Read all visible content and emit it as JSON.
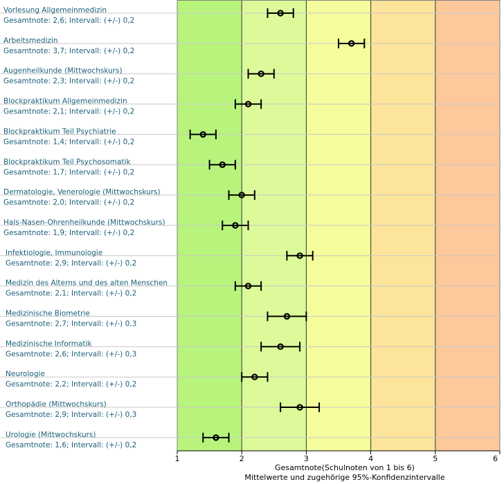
{
  "chart_data": {
    "type": "scatter",
    "subtype": "error-bar",
    "xlabel": "Gesamtnote(Schulnoten von 1 bis 6)",
    "xlabel_sub": "Mittelwerte und zugehörige 95%-Konfidenzintervalle",
    "xlim": [
      1,
      6
    ],
    "x_ticks": [
      "1",
      "2",
      "3",
      "4",
      "5",
      "6"
    ],
    "grid": "horizontal",
    "bands": [
      {
        "from": 1,
        "to": 2,
        "color": "#b8f47c"
      },
      {
        "from": 2,
        "to": 3,
        "color": "#dcfa9a"
      },
      {
        "from": 3,
        "to": 4,
        "color": "#f4fc9c"
      },
      {
        "from": 4,
        "to": 5,
        "color": "#fce49a"
      },
      {
        "from": 5,
        "to": 6,
        "color": "#fcc89c"
      }
    ],
    "items": [
      {
        "name": "Vorlesung Allgemeinmedizin",
        "stat": "Gesamtnote: 2,6;  Intervall: (+/-) 0,2",
        "mean": 2.6,
        "ci": 0.2
      },
      {
        "name": "Arbeitsmedizin",
        "stat": "Gesamtnote: 3,7;  Intervall: (+/-) 0,2",
        "mean": 3.7,
        "ci": 0.2
      },
      {
        "name": "Augenheilkunde (Mittwochskurs)",
        "stat": "Gesamtnote: 2,3;  Intervall: (+/-) 0,2",
        "mean": 2.3,
        "ci": 0.2
      },
      {
        "name": "Blockpraktikum Allgemeinmedizin",
        "stat": "Gesamtnote: 2,1;  Intervall: (+/-) 0,2",
        "mean": 2.1,
        "ci": 0.2
      },
      {
        "name": "Blockpraktikum Teil Psychiatrie",
        "stat": "Gesamtnote: 1,4;  Intervall: (+/-) 0,2",
        "mean": 1.4,
        "ci": 0.2
      },
      {
        "name": "Blockpraktikum Teil Psychosomatik",
        "stat": "Gesamtnote: 1,7;  Intervall: (+/-) 0,2",
        "mean": 1.7,
        "ci": 0.2
      },
      {
        "name": "Dermatologie, Venerologie (Mittwochskurs)",
        "stat": "Gesamtnote: 2,0;  Intervall: (+/-) 0,2",
        "mean": 2.0,
        "ci": 0.2
      },
      {
        "name": "Hals-Nasen-Ohrenheilkunde (Mittwochskurs)",
        "stat": "Gesamtnote: 1,9;  Intervall: (+/-) 0,2",
        "mean": 1.9,
        "ci": 0.2
      },
      {
        "name": "Infektiologie, Immunologie",
        "stat": "Gesamtnote: 2,9;  Intervall: (+/-) 0,2",
        "mean": 2.9,
        "ci": 0.2
      },
      {
        "name": "Medizin des Alterns und des alten Menschen",
        "stat": "Gesamtnote: 2,1;  Intervall: (+/-) 0,2",
        "mean": 2.1,
        "ci": 0.2
      },
      {
        "name": "Medizinische Biometrie",
        "stat": "Gesamtnote: 2,7;  Intervall: (+/-) 0,3",
        "mean": 2.7,
        "ci": 0.3
      },
      {
        "name": "Medizinische Informatik",
        "stat": "Gesamtnote: 2,6;  Intervall: (+/-) 0,3",
        "mean": 2.6,
        "ci": 0.3
      },
      {
        "name": "Neurologie",
        "stat": "Gesamtnote: 2,2;  Intervall: (+/-) 0,2",
        "mean": 2.2,
        "ci": 0.2
      },
      {
        "name": "Orthopädie (Mittwochskurs)",
        "stat": "Gesamtnote: 2,9;  Intervall: (+/-) 0,3",
        "mean": 2.9,
        "ci": 0.3
      },
      {
        "name": "Urologie (Mittwochskurs)",
        "stat": "Gesamtnote: 1,6;  Intervall: (+/-) 0,2",
        "mean": 1.6,
        "ci": 0.2
      }
    ]
  }
}
